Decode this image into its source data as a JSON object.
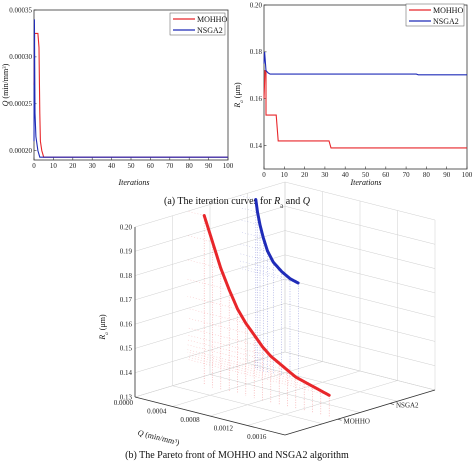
{
  "colors": {
    "mohho": "#e8262a",
    "nsga2": "#1f2bb8",
    "axis": "#333333",
    "grid": "#cfcfcf"
  },
  "chart_data": [
    {
      "type": "line",
      "panel": "a-left",
      "xlabel": "Iterations",
      "ylabel": "Q (min/mm³)",
      "xlim": [
        0,
        100
      ],
      "ylim": [
        0.00019,
        0.00035
      ],
      "xticks": [
        "0",
        "10",
        "20",
        "30",
        "40",
        "50",
        "60",
        "70",
        "80",
        "90",
        "100"
      ],
      "yticks": [
        "0.00035",
        "0.00030",
        "0.00025",
        "0.00020"
      ],
      "legend": {
        "position": "top-right",
        "entries": [
          "MOHHO",
          "NSGA2"
        ]
      },
      "series": [
        {
          "name": "MOHHO",
          "x": [
            0,
            0.3,
            1,
            1,
            2,
            2.6,
            3,
            3.3,
            4,
            5,
            100
          ],
          "y": [
            0.00027,
            0.000325,
            0.000325,
            0.000325,
            0.000325,
            0.00031,
            0.00024,
            0.00021,
            0.0002,
            0.000193,
            0.000193
          ]
        },
        {
          "name": "NSGA2",
          "x": [
            0,
            0.2,
            0.5,
            1,
            2,
            3,
            100
          ],
          "y": [
            0.00021,
            0.00034,
            0.00024,
            0.000215,
            0.0002,
            0.000193,
            0.000193
          ]
        }
      ]
    },
    {
      "type": "line",
      "panel": "a-right",
      "xlabel": "Iterations",
      "ylabel": "Ra (μm)",
      "xlim": [
        0,
        100
      ],
      "ylim": [
        0.13,
        0.2
      ],
      "xticks": [
        "0",
        "10",
        "20",
        "30",
        "40",
        "50",
        "60",
        "70",
        "80",
        "90",
        "100"
      ],
      "yticks": [
        "0.20",
        "0.18",
        "0.16",
        "0.14"
      ],
      "legend": {
        "position": "top-right",
        "entries": [
          "MOHHO",
          "NSGA2"
        ]
      },
      "series": [
        {
          "name": "MOHHO",
          "x": [
            0,
            0.5,
            1,
            1,
            6,
            7,
            32,
            33,
            100
          ],
          "y": [
            0.16,
            0.172,
            0.172,
            0.153,
            0.153,
            0.142,
            0.142,
            0.139,
            0.139
          ]
        },
        {
          "name": "NSGA2",
          "x": [
            0,
            0.3,
            1,
            2,
            3,
            75,
            76,
            100
          ],
          "y": [
            0.175,
            0.18,
            0.172,
            0.171,
            0.1705,
            0.1705,
            0.1702,
            0.1702
          ]
        }
      ]
    },
    {
      "type": "scatter",
      "panel": "b",
      "projection": "3d",
      "xlabel": "Q (min/mm³)",
      "ylabel": "Ra (μm)",
      "zlabel": "",
      "xlim": [
        0.0,
        0.0018
      ],
      "ylim": [
        0.13,
        0.2
      ],
      "xticks": [
        "0.0000",
        "0.0004",
        "0.0008",
        "0.0012",
        "0.0016"
      ],
      "yticks": [
        "0.20",
        "0.19",
        "0.18",
        "0.17",
        "0.16",
        "0.15",
        "0.14",
        "0.13"
      ],
      "categories": [
        "MOHHO",
        "NSGA2"
      ],
      "grid": true,
      "series": [
        {
          "name": "MOHHO",
          "x": [
            0.0002,
            0.0003,
            0.0004,
            0.0005,
            0.0006,
            0.0007,
            0.0008,
            0.0009,
            0.001,
            0.0011,
            0.0012,
            0.0013,
            0.0014,
            0.0015,
            0.0016,
            0.0017
          ],
          "y": [
            0.2,
            0.19,
            0.18,
            0.172,
            0.165,
            0.16,
            0.156,
            0.152,
            0.149,
            0.147,
            0.145,
            0.143,
            0.142,
            0.141,
            0.14,
            0.139
          ]
        },
        {
          "name": "NSGA2",
          "x": [
            0.00019,
            0.00021,
            0.00024,
            0.00028,
            0.00033,
            0.0004,
            0.0005,
            0.0006,
            0.0007
          ],
          "y": [
            0.2,
            0.195,
            0.19,
            0.185,
            0.18,
            0.176,
            0.173,
            0.171,
            0.17
          ]
        }
      ]
    }
  ],
  "captions": {
    "a_prefix": "(a) The iteration curves for ",
    "a_ra": "R",
    "a_ra_sub": "a",
    "a_and": " and ",
    "a_q": "Q",
    "b": "(b) The Pareto front of MOHHO and NSGA2 algorithm"
  },
  "labels": {
    "q_axis_left_main": "Q",
    "q_axis_left_rest": " (min/mm",
    "q_axis_left_sup": "3",
    "q_axis_left_close": ")",
    "ra_main": "R",
    "ra_sub": "a",
    "ra_rest": " (μm)",
    "iterations": "Iterations",
    "q_3d_main": "Q",
    "q_3d_rest": " (min/mm",
    "q_3d_sup": "3",
    "q_3d_close": ")"
  }
}
